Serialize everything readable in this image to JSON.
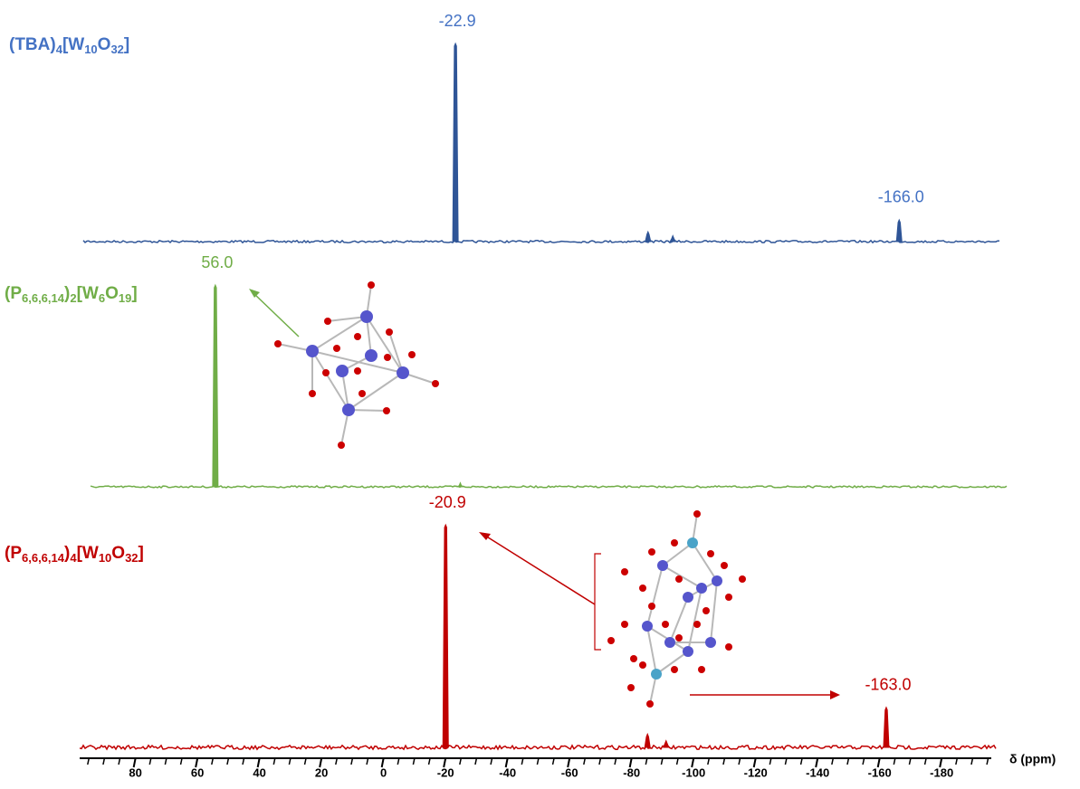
{
  "chart_data": {
    "type": "line",
    "x_label": "δ (ppm)",
    "xlim": [
      98,
      -196
    ],
    "xticks": [
      80,
      60,
      40,
      20,
      0,
      -20,
      -40,
      -60,
      -80,
      -100,
      -120,
      -140,
      -160,
      -180
    ],
    "minor_xticks": [
      95,
      90,
      85,
      75,
      70,
      65,
      55,
      50,
      45,
      35,
      30,
      25,
      15,
      10,
      5,
      -5,
      -10,
      -15,
      -25,
      -30,
      -35,
      -45,
      -50,
      -55,
      -65,
      -70,
      -75,
      -85,
      -90,
      -95,
      -105,
      -110,
      -115,
      -125,
      -130,
      -135,
      -145,
      -150,
      -155,
      -165,
      -170,
      -175,
      -185,
      -190,
      -195
    ],
    "series": [
      {
        "name": "(TBA)4[W10O32]",
        "color": "#2f5597",
        "label_color": "#4472c4",
        "peaks": [
          {
            "x": -22.9,
            "height": 100,
            "label": "-22.9"
          },
          {
            "x": -85,
            "height": 5
          },
          {
            "x": -93,
            "height": 3
          },
          {
            "x": -166.0,
            "height": 11,
            "label": "-166.0"
          }
        ]
      },
      {
        "name": "(P6,6,6,14)2[W6O19]",
        "color": "#70ad47",
        "label_color": "#70ad47",
        "peaks": [
          {
            "x": 56.0,
            "height": 100,
            "label": "56.0"
          },
          {
            "x": -23,
            "height": 2
          }
        ]
      },
      {
        "name": "(P6,6,6,14)4[W10O32]",
        "color": "#c00000",
        "label_color": "#c00000",
        "peaks": [
          {
            "x": -20.9,
            "height": 100,
            "label": "-20.9"
          },
          {
            "x": -86,
            "height": 6
          },
          {
            "x": -92,
            "height": 3
          },
          {
            "x": -163.0,
            "height": 18,
            "label": "-163.0"
          }
        ]
      }
    ]
  }
}
